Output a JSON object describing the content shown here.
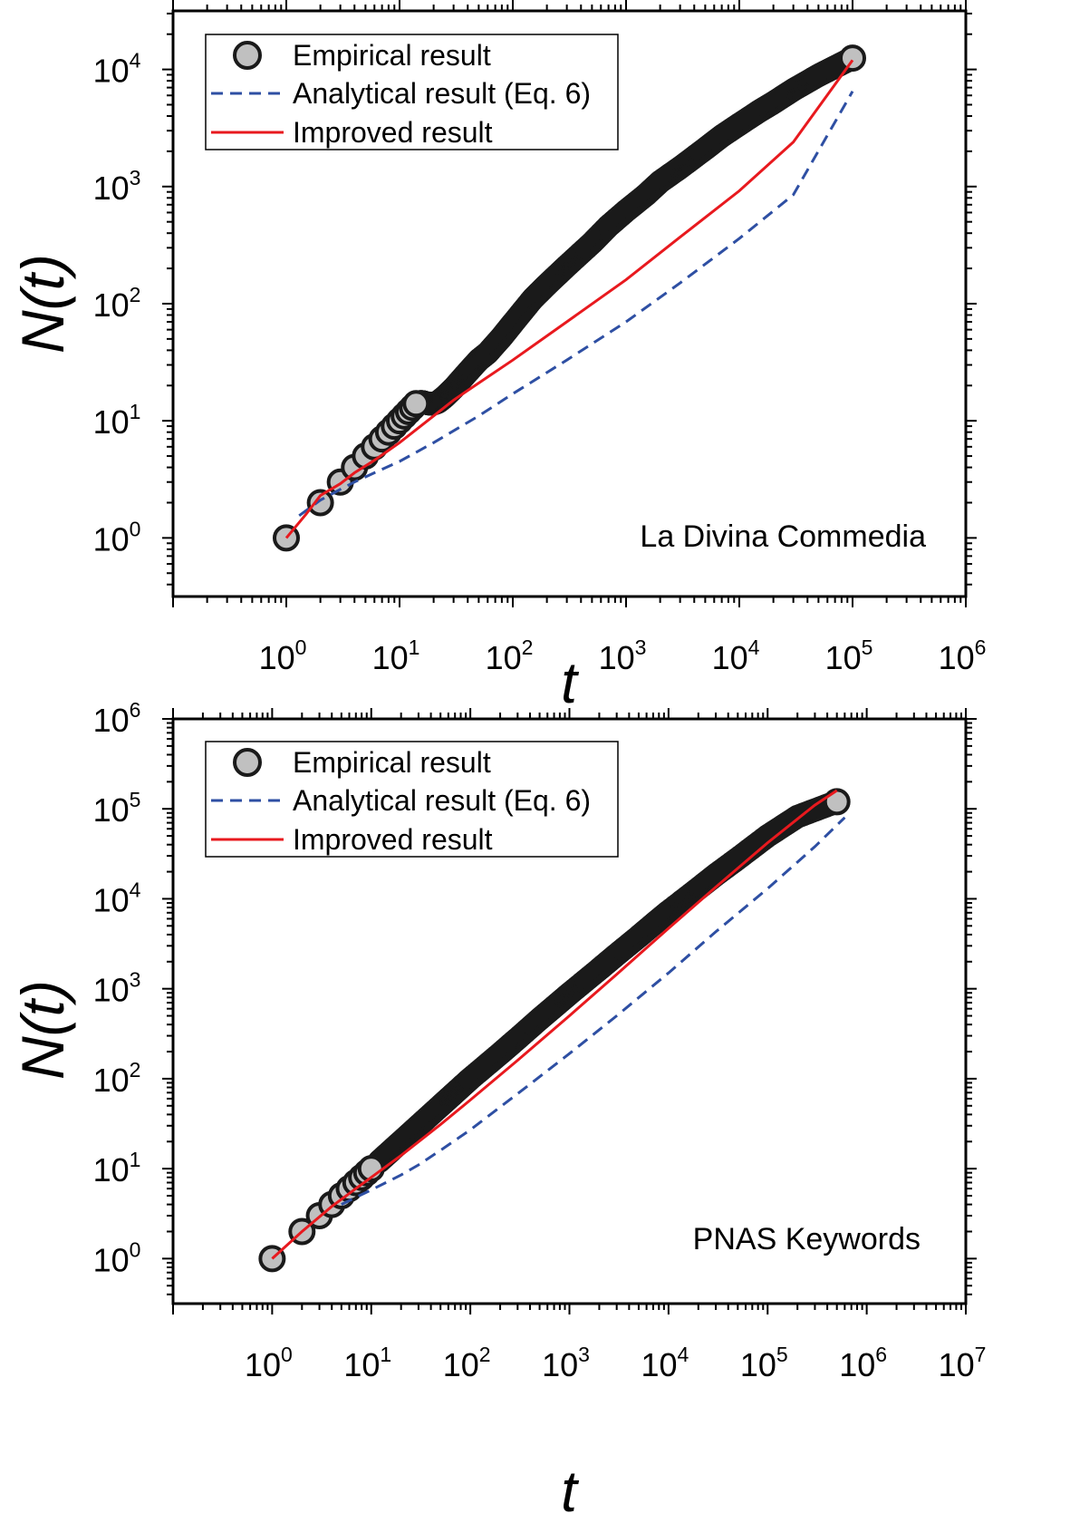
{
  "chart_data": [
    {
      "type": "scatter",
      "xlabel": "t",
      "ylabel": "N(t)",
      "xscale": "log",
      "yscale": "log",
      "xlim": [
        0.1,
        1000000
      ],
      "ylim": [
        0.316,
        31623
      ],
      "x_ticks": [
        1,
        10,
        100,
        1000,
        10000,
        100000,
        1000000
      ],
      "y_ticks": [
        1,
        10,
        100,
        1000,
        10000
      ],
      "annotation": "La Divina Commedia",
      "legend_position": "top-left",
      "legend": [
        {
          "label": "Empirical result",
          "style": "marker"
        },
        {
          "label": "Analytical result (Eq. 6)",
          "style": "dashed"
        },
        {
          "label": "Improved result",
          "style": "solid"
        }
      ],
      "series": [
        {
          "name": "Empirical result",
          "kind": "markers",
          "color": "#1a1a1a",
          "marker_fill": "#c0c0c0",
          "points": [
            [
              1,
              1
            ],
            [
              2,
              2
            ],
            [
              3,
              3
            ],
            [
              4,
              4
            ],
            [
              5,
              5
            ],
            [
              6,
              6
            ],
            [
              7,
              7
            ],
            [
              8,
              8
            ],
            [
              9,
              9
            ],
            [
              10,
              10
            ],
            [
              11,
              11
            ],
            [
              12,
              12
            ],
            [
              13,
              13
            ],
            [
              14,
              14
            ],
            [
              15,
              14.5
            ],
            [
              16,
              14.5
            ],
            [
              18,
              14
            ],
            [
              20,
              14
            ],
            [
              22,
              14.5
            ],
            [
              25,
              16
            ],
            [
              30,
              19
            ],
            [
              40,
              26
            ],
            [
              50,
              33
            ],
            [
              60,
              38
            ],
            [
              80,
              52
            ],
            [
              100,
              68
            ],
            [
              150,
              110
            ],
            [
              200,
              145
            ],
            [
              300,
              210
            ],
            [
              500,
              330
            ],
            [
              700,
              460
            ],
            [
              1000,
              620
            ],
            [
              1500,
              850
            ],
            [
              2000,
              1100
            ],
            [
              3000,
              1450
            ],
            [
              5000,
              2100
            ],
            [
              7000,
              2700
            ],
            [
              10000,
              3400
            ],
            [
              15000,
              4400
            ],
            [
              20000,
              5200
            ],
            [
              30000,
              6700
            ],
            [
              50000,
              8900
            ],
            [
              70000,
              10500
            ],
            [
              100000,
              12500
            ]
          ],
          "large_points": [
            [
              1,
              1
            ],
            [
              2,
              2
            ],
            [
              3,
              3
            ],
            [
              4,
              4
            ],
            [
              5,
              5
            ],
            [
              6,
              6
            ],
            [
              7,
              7
            ],
            [
              8,
              8
            ],
            [
              9,
              9
            ],
            [
              10,
              10
            ],
            [
              11,
              11
            ],
            [
              12,
              12
            ],
            [
              13,
              13
            ],
            [
              14,
              14
            ],
            [
              100000,
              12500
            ]
          ]
        },
        {
          "name": "Analytical result (Eq. 6)",
          "kind": "dashed",
          "color": "#2e4fa3",
          "points": [
            [
              1.3,
              1.55
            ],
            [
              2,
              2.1
            ],
            [
              3,
              2.6
            ],
            [
              4,
              3.0
            ],
            [
              6,
              3.6
            ],
            [
              10,
              4.5
            ],
            [
              20,
              6.5
            ],
            [
              50,
              11
            ],
            [
              100,
              17
            ],
            [
              300,
              33
            ],
            [
              1000,
              70
            ],
            [
              3000,
              150
            ],
            [
              10000,
              360
            ],
            [
              30000,
              850
            ],
            [
              100000,
              6500
            ]
          ]
        },
        {
          "name": "Improved result",
          "kind": "solid",
          "color": "#e8191e",
          "points": [
            [
              1,
              1
            ],
            [
              1.5,
              1.6
            ],
            [
              2,
              2.3
            ],
            [
              3,
              2.9
            ],
            [
              4,
              3.6
            ],
            [
              6,
              4.6
            ],
            [
              10,
              6.5
            ],
            [
              20,
              11
            ],
            [
              30,
              15
            ],
            [
              50,
              21
            ],
            [
              100,
              33
            ],
            [
              300,
              70
            ],
            [
              1000,
              160
            ],
            [
              3000,
              370
            ],
            [
              10000,
              920
            ],
            [
              30000,
              2400
            ],
            [
              100000,
              12000
            ]
          ]
        }
      ]
    },
    {
      "type": "scatter",
      "xlabel": "t",
      "ylabel": "N(t)",
      "xscale": "log",
      "yscale": "log",
      "xlim": [
        0.1,
        10000000
      ],
      "ylim": [
        0.316,
        1000000
      ],
      "x_ticks": [
        1,
        10,
        100,
        1000,
        10000,
        100000,
        1000000,
        10000000
      ],
      "y_ticks": [
        1,
        10,
        100,
        1000,
        10000,
        100000,
        1000000
      ],
      "annotation": "PNAS Keywords",
      "legend_position": "top-left",
      "legend": [
        {
          "label": "Empirical result",
          "style": "marker"
        },
        {
          "label": "Analytical result (Eq. 6)",
          "style": "dashed"
        },
        {
          "label": "Improved result",
          "style": "solid"
        }
      ],
      "series": [
        {
          "name": "Empirical result",
          "kind": "markers",
          "color": "#1a1a1a",
          "marker_fill": "#c0c0c0",
          "points": [
            [
              1,
              1
            ],
            [
              2,
              2
            ],
            [
              3,
              3
            ],
            [
              4,
              4
            ],
            [
              5,
              5
            ],
            [
              6,
              6
            ],
            [
              7,
              7
            ],
            [
              8,
              8
            ],
            [
              9,
              9
            ],
            [
              10,
              10
            ],
            [
              12,
              12
            ],
            [
              15,
              15
            ],
            [
              20,
              20
            ],
            [
              30,
              30
            ],
            [
              50,
              50
            ],
            [
              70,
              70
            ],
            [
              100,
              100
            ],
            [
              200,
              190
            ],
            [
              300,
              280
            ],
            [
              500,
              460
            ],
            [
              700,
              630
            ],
            [
              1000,
              880
            ],
            [
              2000,
              1650
            ],
            [
              3000,
              2400
            ],
            [
              5000,
              3800
            ],
            [
              7000,
              5200
            ],
            [
              10000,
              7200
            ],
            [
              20000,
              13000
            ],
            [
              30000,
              18500
            ],
            [
              50000,
              28000
            ],
            [
              100000,
              50000
            ],
            [
              200000,
              82000
            ],
            [
              500000,
              120000
            ]
          ],
          "large_points": [
            [
              1,
              1
            ],
            [
              2,
              2
            ],
            [
              3,
              3
            ],
            [
              4,
              4
            ],
            [
              5,
              5
            ],
            [
              6,
              6
            ],
            [
              7,
              7
            ],
            [
              8,
              8
            ],
            [
              9,
              9
            ],
            [
              10,
              10
            ],
            [
              500000,
              120000
            ]
          ]
        },
        {
          "name": "Analytical result (Eq. 6)",
          "kind": "dashed",
          "color": "#2e4fa3",
          "points": [
            [
              5,
              4
            ],
            [
              7,
              4.8
            ],
            [
              10,
              5.8
            ],
            [
              20,
              8.5
            ],
            [
              30,
              11
            ],
            [
              50,
              16
            ],
            [
              100,
              27
            ],
            [
              300,
              68
            ],
            [
              1000,
              190
            ],
            [
              3000,
              500
            ],
            [
              10000,
              1500
            ],
            [
              30000,
              4300
            ],
            [
              100000,
              13000
            ],
            [
              300000,
              38000
            ],
            [
              600000,
              80000
            ]
          ]
        },
        {
          "name": "Improved result",
          "kind": "solid",
          "color": "#e8191e",
          "points": [
            [
              1,
              1
            ],
            [
              2,
              2
            ],
            [
              4,
              3.8
            ],
            [
              7,
              6
            ],
            [
              10,
              8
            ],
            [
              20,
              14
            ],
            [
              50,
              31
            ],
            [
              100,
              58
            ],
            [
              300,
              160
            ],
            [
              1000,
              500
            ],
            [
              3000,
              1450
            ],
            [
              10000,
              4700
            ],
            [
              30000,
              13500
            ],
            [
              100000,
              42000
            ],
            [
              300000,
              110000
            ],
            [
              500000,
              160000
            ]
          ]
        }
      ]
    }
  ]
}
